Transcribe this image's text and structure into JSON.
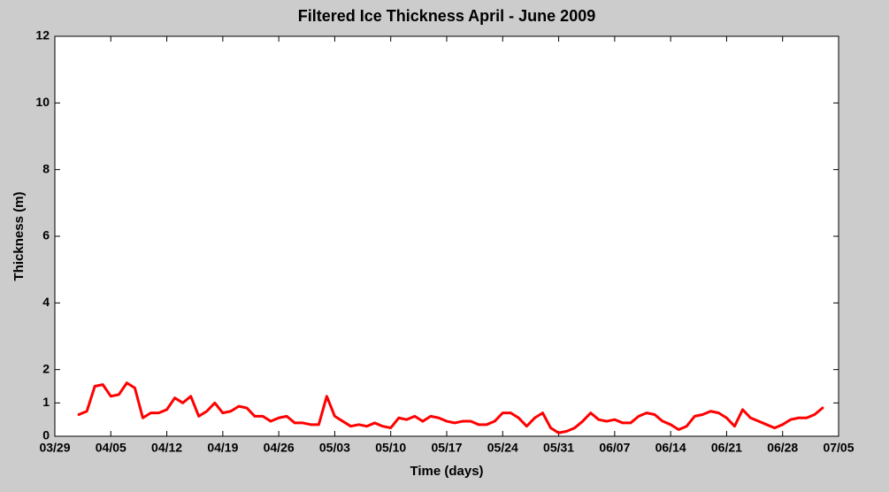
{
  "chart_data": {
    "type": "line",
    "title": "Filtered Ice Thickness April - June 2009",
    "x_label": "Time (days)",
    "y_label": "Thickness (m)",
    "color": "#ff0000",
    "grid": false,
    "xlim": [
      "03/29",
      "07/05"
    ],
    "xticks": [
      "03/29",
      "04/05",
      "04/12",
      "04/19",
      "04/26",
      "05/03",
      "05/10",
      "05/17",
      "05/24",
      "05/31",
      "06/07",
      "06/14",
      "06/21",
      "06/28",
      "07/05"
    ],
    "ylim": [
      0,
      12
    ],
    "yticks": [
      0,
      1,
      2,
      4,
      6,
      8,
      10,
      12
    ],
    "x": [
      "04/01",
      "04/02",
      "04/03",
      "04/04",
      "04/05",
      "04/06",
      "04/07",
      "04/08",
      "04/09",
      "04/10",
      "04/11",
      "04/12",
      "04/13",
      "04/14",
      "04/15",
      "04/16",
      "04/17",
      "04/18",
      "04/19",
      "04/20",
      "04/21",
      "04/22",
      "04/23",
      "04/24",
      "04/25",
      "04/26",
      "04/27",
      "04/28",
      "04/29",
      "04/30",
      "05/01",
      "05/02",
      "05/03",
      "05/04",
      "05/05",
      "05/06",
      "05/07",
      "05/08",
      "05/09",
      "05/10",
      "05/11",
      "05/12",
      "05/13",
      "05/14",
      "05/15",
      "05/16",
      "05/17",
      "05/18",
      "05/19",
      "05/20",
      "05/21",
      "05/22",
      "05/23",
      "05/24",
      "05/25",
      "05/26",
      "05/27",
      "05/28",
      "05/29",
      "05/30",
      "05/31",
      "06/01",
      "06/02",
      "06/03",
      "06/04",
      "06/05",
      "06/06",
      "06/07",
      "06/08",
      "06/09",
      "06/10",
      "06/11",
      "06/12",
      "06/13",
      "06/14",
      "06/15",
      "06/16",
      "06/17",
      "06/18",
      "06/19",
      "06/20",
      "06/21",
      "06/22",
      "06/23",
      "06/24",
      "06/25",
      "06/26",
      "06/27",
      "06/28",
      "06/29",
      "06/30",
      "07/01",
      "07/02",
      "07/03"
    ],
    "values": [
      0.65,
      0.75,
      1.5,
      1.55,
      1.2,
      1.25,
      1.6,
      1.45,
      0.55,
      0.7,
      0.7,
      0.8,
      1.15,
      1.0,
      1.2,
      0.6,
      0.75,
      1.0,
      0.7,
      0.75,
      0.9,
      0.85,
      0.6,
      0.6,
      0.45,
      0.55,
      0.6,
      0.4,
      0.4,
      0.35,
      0.35,
      1.2,
      0.6,
      0.45,
      0.3,
      0.35,
      0.3,
      0.4,
      0.3,
      0.25,
      0.55,
      0.5,
      0.6,
      0.45,
      0.6,
      0.55,
      0.45,
      0.4,
      0.45,
      0.45,
      0.35,
      0.35,
      0.45,
      0.7,
      0.7,
      0.55,
      0.3,
      0.55,
      0.7,
      0.25,
      0.1,
      0.15,
      0.25,
      0.45,
      0.7,
      0.5,
      0.45,
      0.5,
      0.4,
      0.4,
      0.6,
      0.7,
      0.65,
      0.45,
      0.35,
      0.2,
      0.3,
      0.6,
      0.65,
      0.75,
      0.7,
      0.55,
      0.3,
      0.8,
      0.55,
      0.45,
      0.35,
      0.25,
      0.35,
      0.5,
      0.55,
      0.55,
      0.65,
      0.85
    ]
  }
}
